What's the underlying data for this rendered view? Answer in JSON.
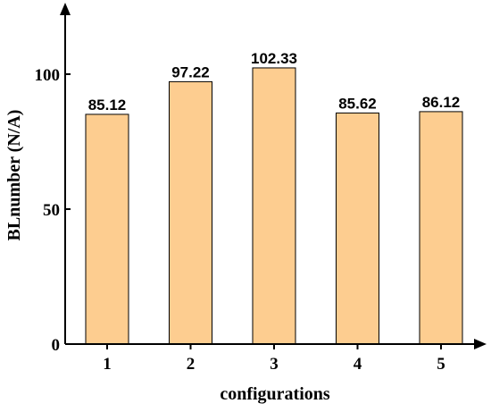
{
  "chart_data": {
    "type": "bar",
    "categories": [
      "1",
      "2",
      "3",
      "4",
      "5"
    ],
    "values": [
      85.12,
      97.22,
      102.33,
      85.62,
      86.12
    ],
    "value_labels": [
      "85.12",
      "97.22",
      "102.33",
      "85.62",
      "86.12"
    ],
    "xlabel": "configurations",
    "ylabel": "BLnumber (N/A)",
    "ylim": [
      0,
      125
    ],
    "yticks": [
      0,
      50,
      100
    ],
    "ytick_labels": [
      "0",
      "50",
      "100"
    ],
    "grid": false,
    "bar_color": "#FDCD90"
  }
}
